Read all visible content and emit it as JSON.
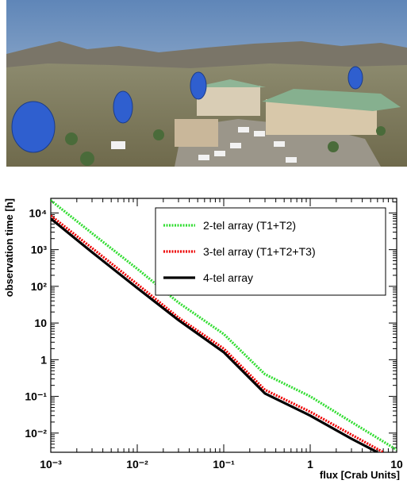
{
  "chart_data": {
    "type": "line",
    "xlabel": "flux [Crab Units]",
    "ylabel": "observation time [h]",
    "xscale": "log",
    "yscale": "log",
    "xlim": [
      0.001,
      10
    ],
    "ylim": [
      0.003,
      25000
    ],
    "xticks": [
      {
        "value": 0.001,
        "label": "10⁻³"
      },
      {
        "value": 0.01,
        "label": "10⁻²"
      },
      {
        "value": 0.1,
        "label": "10⁻¹"
      },
      1,
      10
    ],
    "yticks": [
      {
        "value": 0.01,
        "label": "10⁻²"
      },
      {
        "value": 0.1,
        "label": "10⁻¹"
      },
      1,
      10,
      {
        "value": 100,
        "label": "10²"
      },
      {
        "value": 1000,
        "label": "10³"
      },
      {
        "value": 10000,
        "label": "10⁴"
      }
    ],
    "legend": "upper right",
    "series": [
      {
        "name": "2-tel array (T1+T2)",
        "color": "#33dd33",
        "style": "dotted",
        "x": [
          0.001,
          0.003,
          0.01,
          0.03,
          0.1,
          0.3,
          1,
          3,
          10
        ],
        "values": [
          22000,
          2800,
          300,
          36,
          5,
          0.4,
          0.1,
          0.02,
          0.0035
        ]
      },
      {
        "name": "3-tel array (T1+T2+T3)",
        "color": "#ee0000",
        "style": "dotted",
        "x": [
          0.001,
          0.003,
          0.01,
          0.03,
          0.1,
          0.3,
          1,
          3,
          7
        ],
        "values": [
          8500,
          1100,
          115,
          14,
          2,
          0.15,
          0.038,
          0.009,
          0.003
        ]
      },
      {
        "name": "4-tel array",
        "color": "#000000",
        "style": "solid",
        "x": [
          0.001,
          0.003,
          0.01,
          0.03,
          0.1,
          0.3,
          1,
          3,
          6
        ],
        "values": [
          7000,
          850,
          90,
          12,
          1.6,
          0.12,
          0.03,
          0.007,
          0.003
        ]
      }
    ]
  }
}
